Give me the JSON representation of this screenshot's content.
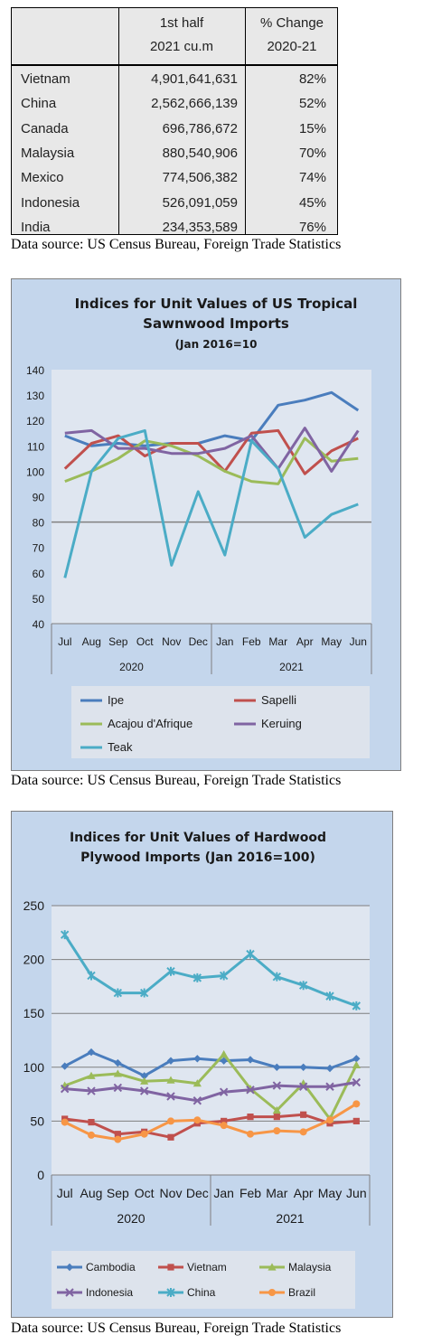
{
  "table": {
    "headers": [
      [
        "",
        ""
      ],
      [
        "1st half",
        "2021 cu.m"
      ],
      [
        "% Change",
        "2020-21"
      ]
    ],
    "rows": [
      {
        "country": "Vietnam",
        "volume": "4,901,641,631",
        "change": "82%"
      },
      {
        "country": "China",
        "volume": "2,562,666,139",
        "change": "52%"
      },
      {
        "country": "Canada",
        "volume": "696,786,672",
        "change": "15%"
      },
      {
        "country": "Malaysia",
        "volume": "880,540,906",
        "change": "70%"
      },
      {
        "country": "Mexico",
        "volume": "774,506,382",
        "change": "74%"
      },
      {
        "country": "Indonesia",
        "volume": "526,091,059",
        "change": "45%"
      },
      {
        "country": "India",
        "volume": "234,353,589",
        "change": "76%"
      }
    ]
  },
  "sources": [
    "Data source: US Census Bureau, Foreign Trade Statistics",
    "Data source: US Census Bureau, Foreign Trade Statistics",
    "Data source: US Census Bureau, Foreign Trade Statistics"
  ],
  "chart_data": [
    {
      "type": "line",
      "title": "Indices for Unit Values of US Tropical Sawnwood Imports",
      "title_lines": [
        "Indices for Unit Values of US Tropical",
        "Sawnwood Imports"
      ],
      "subtitle": "(Jan 2016=10",
      "categories": [
        "Jul",
        "Aug",
        "Sep",
        "Oct",
        "Nov",
        "Dec",
        "Jan",
        "Feb",
        "Mar",
        "Apr",
        "May",
        "Jun"
      ],
      "year_groups": [
        {
          "label": "2020",
          "count": 6
        },
        {
          "label": "2021",
          "count": 6
        }
      ],
      "ylim": [
        40,
        140
      ],
      "yticks": [
        "40",
        "50",
        "60",
        "70",
        "80",
        "90",
        "100",
        "110",
        "120",
        "130",
        "140"
      ],
      "reference_line": 80,
      "legend_position": "bottom",
      "plot_bg": "#dfe6f0",
      "series": [
        {
          "name": "Ipe",
          "color": "#4a7dbd",
          "values": [
            114,
            110,
            111,
            110,
            111,
            111,
            114,
            112,
            126,
            128,
            131,
            124
          ]
        },
        {
          "name": "Sapelli",
          "color": "#c0504d",
          "values": [
            101,
            111,
            114,
            106,
            111,
            111,
            100,
            115,
            116,
            99,
            108,
            113
          ]
        },
        {
          "name": "Acajou d'Afrique",
          "color": "#9bbb59",
          "values": [
            96,
            100,
            105,
            112,
            110,
            106,
            100,
            96,
            95,
            113,
            104,
            105
          ]
        },
        {
          "name": "Keruing",
          "color": "#8064a2",
          "values": [
            115,
            116,
            109,
            109,
            107,
            107,
            109,
            114,
            101,
            117,
            100,
            116
          ]
        },
        {
          "name": "Teak",
          "color": "#4bacc6",
          "values": [
            58,
            100,
            113,
            116,
            63,
            92,
            67,
            112,
            101,
            74,
            83,
            87
          ]
        }
      ]
    },
    {
      "type": "line",
      "title": "Indices for Unit Values of Hardwood Plywood Imports (Jan 2016=100)",
      "title_lines": [
        "Indices for Unit Values of Hardwood",
        "Plywood Imports (Jan 2016=100)"
      ],
      "categories": [
        "Jul",
        "Aug",
        "Sep",
        "Oct",
        "Nov",
        "Dec",
        "Jan",
        "Feb",
        "Mar",
        "Apr",
        "May",
        "Jun"
      ],
      "year_groups": [
        {
          "label": "2020",
          "count": 6
        },
        {
          "label": "2021",
          "count": 6
        }
      ],
      "ylim": [
        0,
        250
      ],
      "yticks": [
        "0",
        "50",
        "100",
        "150",
        "200",
        "250"
      ],
      "legend_position": "bottom",
      "plot_bg": "#dfe6f0",
      "series": [
        {
          "name": "Cambodia",
          "color": "#4a7dbd",
          "marker": "diamond",
          "values": [
            101,
            114,
            104,
            92,
            106,
            108,
            106,
            107,
            100,
            100,
            99,
            108
          ]
        },
        {
          "name": "Vietnam",
          "color": "#c0504d",
          "marker": "square",
          "values": [
            52,
            49,
            38,
            40,
            35,
            48,
            50,
            54,
            54,
            56,
            48,
            50
          ]
        },
        {
          "name": "Malaysia",
          "color": "#9bbb59",
          "marker": "triangle",
          "values": [
            83,
            92,
            94,
            87,
            88,
            85,
            112,
            80,
            60,
            85,
            52,
            102
          ]
        },
        {
          "name": "Indonesia",
          "color": "#8064a2",
          "marker": "x",
          "values": [
            80,
            78,
            81,
            78,
            73,
            69,
            77,
            79,
            83,
            82,
            82,
            86
          ]
        },
        {
          "name": "China",
          "color": "#4bacc6",
          "marker": "star",
          "values": [
            223,
            185,
            169,
            169,
            189,
            183,
            185,
            205,
            184,
            176,
            166,
            157
          ]
        },
        {
          "name": "Brazil",
          "color": "#f79646",
          "marker": "circle",
          "values": [
            49,
            37,
            33,
            38,
            50,
            51,
            46,
            38,
            41,
            40,
            51,
            66
          ]
        }
      ]
    }
  ]
}
